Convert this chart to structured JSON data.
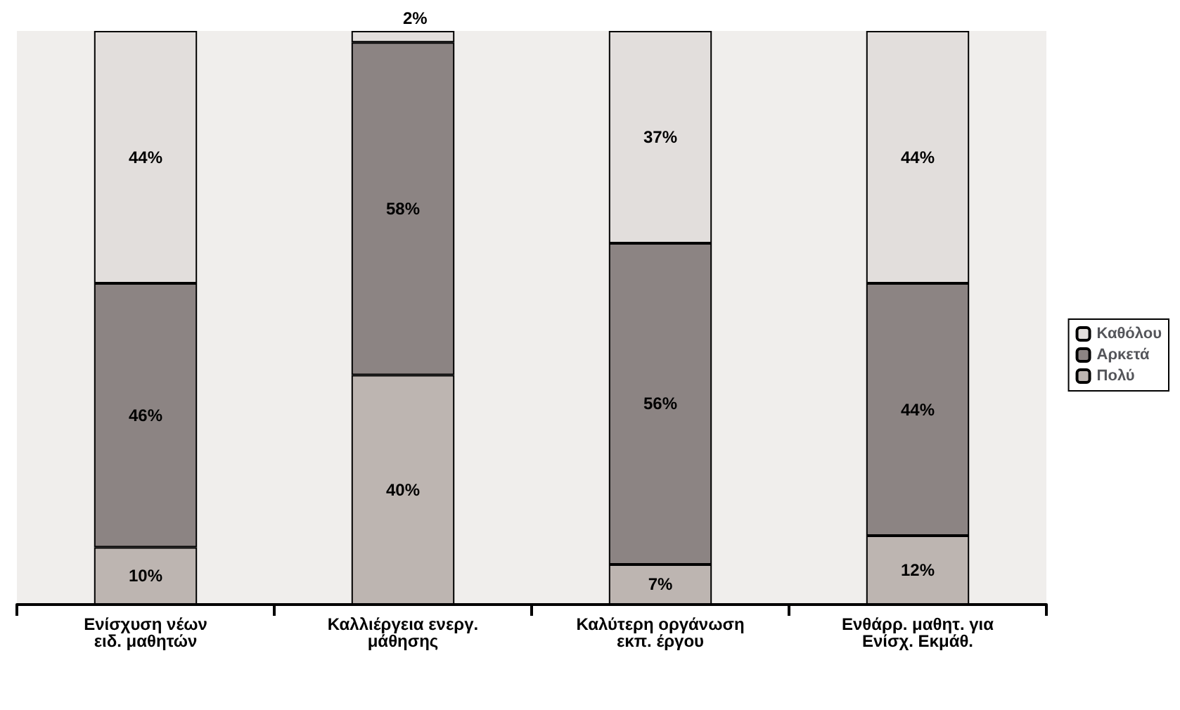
{
  "chart_data": {
    "type": "bar",
    "stacked": true,
    "legend": "right",
    "categories": [
      "Ενίσχυση νέων ειδ. μαθητών",
      "Καλλιέργεια ενεργ. μάθησης",
      "Καλύτερη οργάνωση εκπ. έργου",
      "Ενθάρρ. μαθητ. για Ενίσχ. Εκμάθ."
    ],
    "series": [
      {
        "name": "Πολύ",
        "color": "#bdb5b1",
        "values": [
          10,
          40,
          7,
          12
        ],
        "value_labels": [
          "10%",
          "40%",
          "7%",
          "12%"
        ]
      },
      {
        "name": "Αρκετά",
        "color": "#8c8483",
        "values": [
          46,
          58,
          56,
          44
        ],
        "value_labels": [
          "46%",
          "58%",
          "56%",
          "44%"
        ]
      },
      {
        "name": "Καθόλου",
        "color": "#e2dedc",
        "values": [
          44,
          2,
          37,
          44
        ],
        "value_labels": [
          "44%",
          "2%",
          "37%",
          "44%"
        ]
      }
    ]
  }
}
